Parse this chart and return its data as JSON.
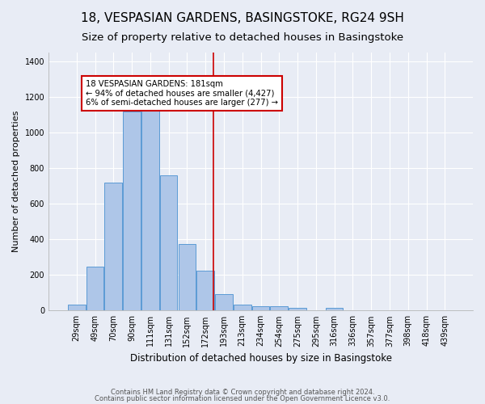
{
  "title": "18, VESPASIAN GARDENS, BASINGSTOKE, RG24 9SH",
  "subtitle": "Size of property relative to detached houses in Basingstoke",
  "xlabel": "Distribution of detached houses by size in Basingstoke",
  "ylabel": "Number of detached properties",
  "categories": [
    "29sqm",
    "49sqm",
    "70sqm",
    "90sqm",
    "111sqm",
    "131sqm",
    "152sqm",
    "172sqm",
    "193sqm",
    "213sqm",
    "234sqm",
    "254sqm",
    "275sqm",
    "295sqm",
    "316sqm",
    "336sqm",
    "357sqm",
    "377sqm",
    "398sqm",
    "418sqm",
    "439sqm"
  ],
  "values": [
    35,
    245,
    720,
    1120,
    1130,
    760,
    375,
    225,
    90,
    35,
    25,
    25,
    15,
    0,
    15,
    0,
    0,
    0,
    0,
    0,
    0
  ],
  "bar_color": "#aec6e8",
  "bar_edge_color": "#5b9bd5",
  "vline_color": "#cc0000",
  "annotation_text": "18 VESPASIAN GARDENS: 181sqm\n← 94% of detached houses are smaller (4,427)\n6% of semi-detached houses are larger (277) →",
  "annotation_box_color": "#ffffff",
  "annotation_box_edge_color": "#cc0000",
  "footer1": "Contains HM Land Registry data © Crown copyright and database right 2024.",
  "footer2": "Contains public sector information licensed under the Open Government Licence v3.0.",
  "bg_color": "#e8ecf5",
  "ylim": [
    0,
    1450
  ],
  "title_fontsize": 11,
  "subtitle_fontsize": 9.5
}
